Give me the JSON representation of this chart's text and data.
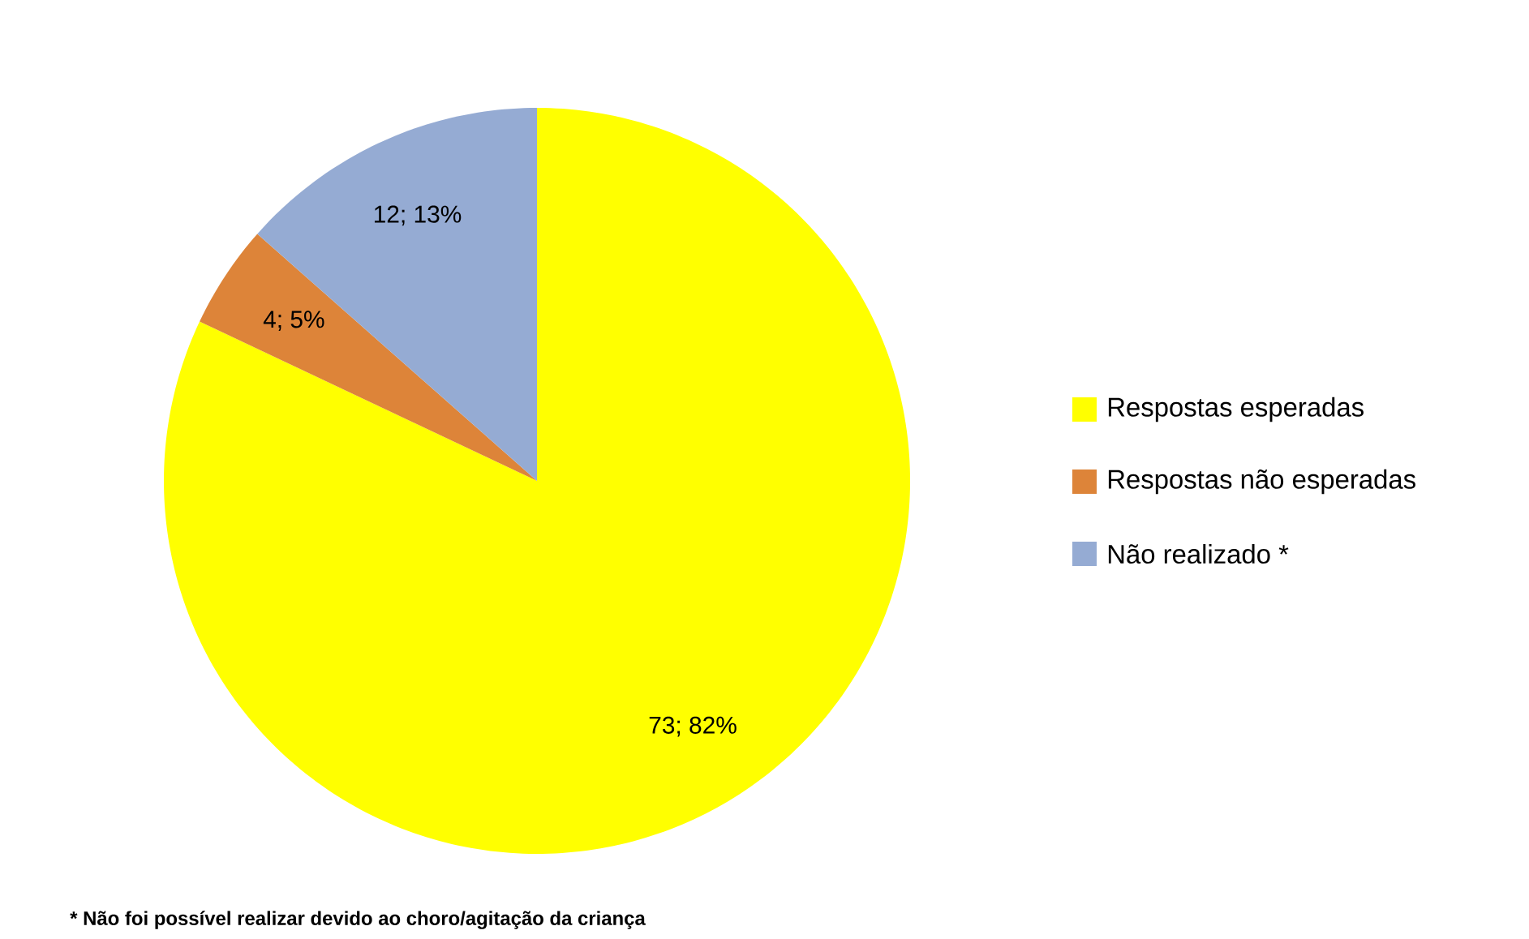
{
  "chart_data": {
    "type": "pie",
    "categories": [
      "Respostas esperadas",
      "Respostas não esperadas",
      "Não realizado *"
    ],
    "values": [
      73,
      4,
      12
    ],
    "colors": [
      "#ffff00",
      "#dd8439",
      "#95abd3"
    ],
    "value_labels": [
      "73; 82%",
      "4; 5%",
      "12; 13%"
    ],
    "legend": "right",
    "annotations": [
      "* Não foi possível realizar devido ao choro/agitação da criança"
    ]
  }
}
